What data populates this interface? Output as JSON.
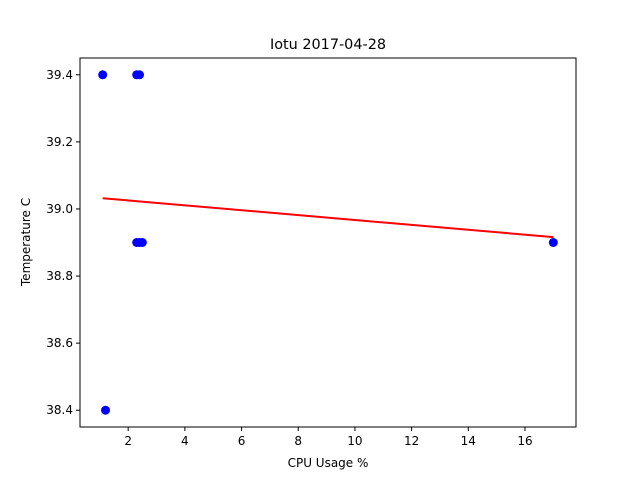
{
  "chart_data": {
    "type": "scatter",
    "title": "Iotu 2017-04-28",
    "xlabel": "CPU Usage %",
    "ylabel": "Temperature C",
    "xlim": [
      0.3,
      17.8
    ],
    "ylim": [
      38.35,
      39.45
    ],
    "xticks": [
      2,
      4,
      6,
      8,
      10,
      12,
      14,
      16
    ],
    "yticks": [
      38.4,
      38.6,
      38.8,
      39.0,
      39.2,
      39.4
    ],
    "ytick_labels": [
      "38.4",
      "38.6",
      "38.8",
      "39.0",
      "39.2",
      "39.4"
    ],
    "grid": false,
    "series": [
      {
        "kind": "scatter",
        "color": "#0000ff",
        "points": [
          {
            "x": 1.1,
            "y": 39.4
          },
          {
            "x": 2.3,
            "y": 39.4
          },
          {
            "x": 2.4,
            "y": 39.4
          },
          {
            "x": 2.3,
            "y": 38.9
          },
          {
            "x": 2.4,
            "y": 38.9
          },
          {
            "x": 2.5,
            "y": 38.9
          },
          {
            "x": 17.0,
            "y": 38.9
          },
          {
            "x": 1.2,
            "y": 38.4
          }
        ]
      },
      {
        "kind": "line",
        "color": "#ff0000",
        "points": [
          {
            "x": 1.1,
            "y": 39.032
          },
          {
            "x": 17.0,
            "y": 38.916
          }
        ]
      }
    ]
  }
}
